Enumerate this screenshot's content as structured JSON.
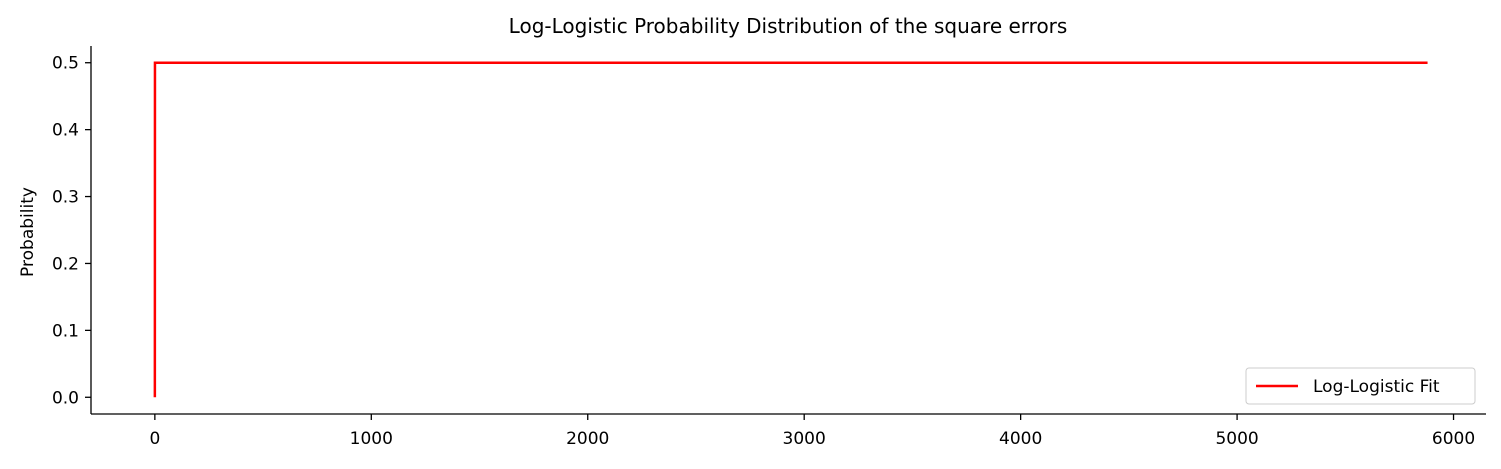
{
  "chart_data": {
    "type": "line",
    "title": "Log-Logistic Probability Distribution of the square errors",
    "xlabel": "",
    "ylabel": "Probability",
    "xlim": [
      -295,
      6150
    ],
    "ylim": [
      -0.025,
      0.525
    ],
    "x_ticks": [
      0,
      1000,
      2000,
      3000,
      4000,
      5000,
      6000
    ],
    "x_tick_labels": [
      "0",
      "1000",
      "2000",
      "3000",
      "4000",
      "5000",
      "6000"
    ],
    "y_ticks": [
      0.0,
      0.1,
      0.2,
      0.3,
      0.4,
      0.5
    ],
    "y_tick_labels": [
      "0.0",
      "0.1",
      "0.2",
      "0.3",
      "0.4",
      "0.5"
    ],
    "grid": false,
    "legend_position": "lower-right",
    "series": [
      {
        "name": "Log-Logistic Fit",
        "color": "#ff0000",
        "x": [
          0,
          0.5,
          5880
        ],
        "y": [
          0.0,
          0.5,
          0.5
        ]
      }
    ]
  }
}
